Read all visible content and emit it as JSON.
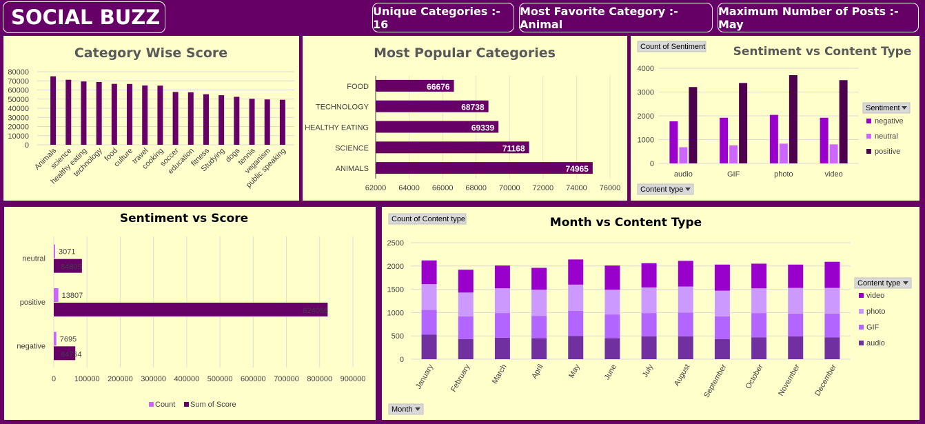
{
  "header": {
    "title": "SOCIAL BUZZ",
    "kpi_unique": "Unique Categories :- 16",
    "kpi_favorite": "Most Favorite Category :- Animal",
    "kpi_max_posts": "Maximum Number of Posts :- May"
  },
  "colors": {
    "background": "#660066",
    "panel": "#ffffcc",
    "bar_dark": "#660066",
    "negative": "#9900cc",
    "neutral": "#cc66ff",
    "positive": "#4d004d",
    "video": "#9900cc",
    "photo": "#cc99ff",
    "gif": "#b366ff",
    "audio": "#7030a0"
  },
  "chart_data": [
    {
      "type": "bar",
      "title": "Category Wise Score",
      "categories": [
        "Animals",
        "science",
        "healthy eating",
        "technology",
        "food",
        "culture",
        "travel",
        "cooking",
        "soccer",
        "education",
        "fitness",
        "Studying",
        "dogs",
        "tennis",
        "veganism",
        "public speaking"
      ],
      "values": [
        74965,
        71168,
        69339,
        68738,
        66676,
        66579,
        64880,
        64756,
        57783,
        57436,
        55323,
        54269,
        52511,
        50339,
        49619,
        49264
      ],
      "ylim": [
        0,
        80000
      ],
      "yticks": [
        "80000",
        "70000",
        "60000",
        "50000",
        "40000",
        "30000",
        "20000",
        "10000",
        "0"
      ]
    },
    {
      "type": "bar",
      "orientation": "horizontal",
      "title": "Most Popular Categories",
      "categories": [
        "FOOD",
        "TECHNOLOGY",
        "HEALTHY EATING",
        "SCIENCE",
        "ANIMALS"
      ],
      "values": [
        66676,
        68738,
        69339,
        71168,
        74965
      ],
      "value_labels": [
        "66676",
        "68738",
        "69339",
        "71168",
        "74965"
      ],
      "xlim": [
        62000,
        76000
      ],
      "xticks": [
        "62000",
        "64000",
        "66000",
        "68000",
        "70000",
        "72000",
        "74000",
        "76000"
      ]
    },
    {
      "type": "bar",
      "title": "Sentiment vs Content Type",
      "field_button": "Count of Sentiment",
      "axis_button": "Content type",
      "legend_title": "Sentiment",
      "legend_placement": "right",
      "categories": [
        "audio",
        "GIF",
        "photo",
        "video"
      ],
      "series": [
        {
          "name": "negative",
          "values": [
            1770,
            1920,
            2040,
            1920
          ]
        },
        {
          "name": "neutral",
          "values": [
            680,
            760,
            830,
            800
          ]
        },
        {
          "name": "positive",
          "values": [
            3210,
            3380,
            3710,
            3500
          ]
        }
      ],
      "ylim": [
        0,
        4000
      ],
      "yticks": [
        "4000",
        "3000",
        "2000",
        "1000",
        "0"
      ]
    },
    {
      "type": "bar",
      "orientation": "horizontal",
      "title": "Sentiment vs Score",
      "categories": [
        "neutral",
        "positive",
        "negative"
      ],
      "series": [
        {
          "name": "Count",
          "values": [
            3071,
            13807,
            7695
          ],
          "labels": [
            "3071",
            "13807",
            "7695"
          ]
        },
        {
          "name": "Sum of Score",
          "values": [
            84805,
            824056,
            64764
          ],
          "labels": [
            "84805",
            "824056",
            "64764"
          ]
        }
      ],
      "xlim": [
        0,
        900000
      ],
      "xticks": [
        "0",
        "100000",
        "200000",
        "300000",
        "400000",
        "500000",
        "600000",
        "700000",
        "800000",
        "900000"
      ],
      "legend_placement": "bottom"
    },
    {
      "type": "bar",
      "stacked": true,
      "title": "Month vs Content Type",
      "field_button": "Count of Content type",
      "axis_button": "Month",
      "legend_title": "Content type",
      "legend_placement": "right",
      "categories": [
        "January",
        "February",
        "March",
        "April",
        "May",
        "June",
        "July",
        "August",
        "September",
        "October",
        "November",
        "December"
      ],
      "series": [
        {
          "name": "audio",
          "values": [
            530,
            430,
            460,
            450,
            500,
            450,
            490,
            490,
            430,
            470,
            490,
            470
          ]
        },
        {
          "name": "GIF",
          "values": [
            530,
            490,
            530,
            480,
            540,
            510,
            500,
            510,
            490,
            520,
            490,
            510
          ]
        },
        {
          "name": "photo",
          "values": [
            550,
            510,
            530,
            560,
            560,
            530,
            550,
            560,
            550,
            530,
            550,
            550
          ]
        },
        {
          "name": "video",
          "values": [
            510,
            490,
            490,
            470,
            540,
            520,
            520,
            550,
            560,
            530,
            500,
            560
          ]
        }
      ],
      "ylim": [
        0,
        2500
      ],
      "yticks": [
        "2500",
        "2000",
        "1500",
        "1000",
        "500",
        "0"
      ]
    }
  ]
}
